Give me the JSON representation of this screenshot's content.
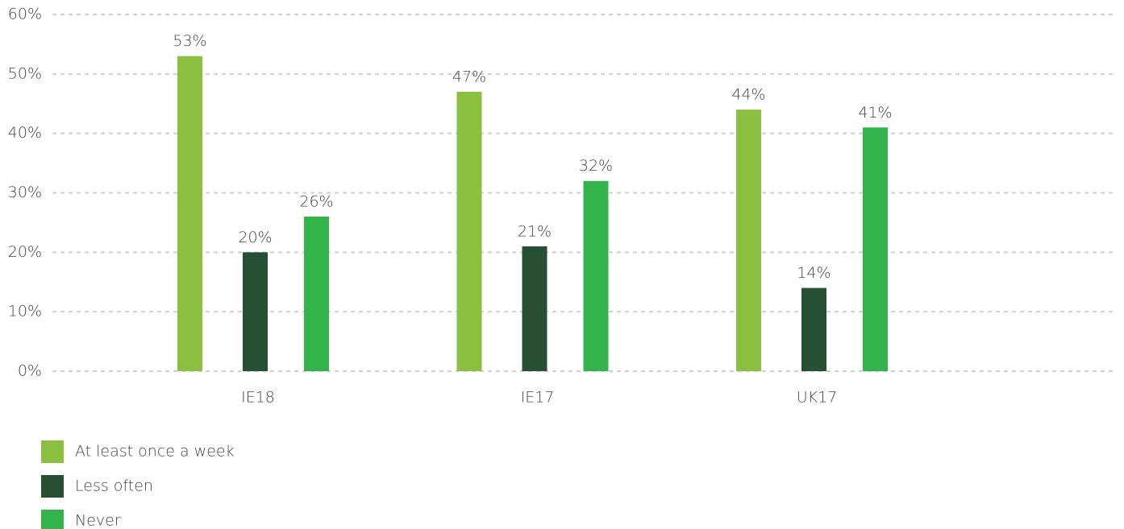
{
  "chart_data": {
    "type": "bar",
    "categories": [
      "IE18",
      "IE17",
      "UK17"
    ],
    "series": [
      {
        "name": "At least once a week",
        "color": "#8bbf3f",
        "values": [
          53,
          47,
          44
        ],
        "value_labels": [
          "53%",
          "47%",
          "44%"
        ]
      },
      {
        "name": "Less often",
        "color": "#264f33",
        "values": [
          20,
          21,
          14
        ],
        "value_labels": [
          "20%",
          "21%",
          "14%"
        ]
      },
      {
        "name": "Never",
        "color": "#33b44a",
        "values": [
          26,
          32,
          41
        ],
        "value_labels": [
          "26%",
          "32%",
          "41%"
        ]
      }
    ],
    "ylim": [
      0,
      60
    ],
    "yticks": [
      {
        "value": 0,
        "label": "0%"
      },
      {
        "value": 10,
        "label": "10%"
      },
      {
        "value": 20,
        "label": "20%"
      },
      {
        "value": 30,
        "label": "30%"
      },
      {
        "value": 40,
        "label": "40%"
      },
      {
        "value": 50,
        "label": "50%"
      },
      {
        "value": 60,
        "label": "60%"
      }
    ],
    "grid": true,
    "legend": "bottom-left"
  }
}
